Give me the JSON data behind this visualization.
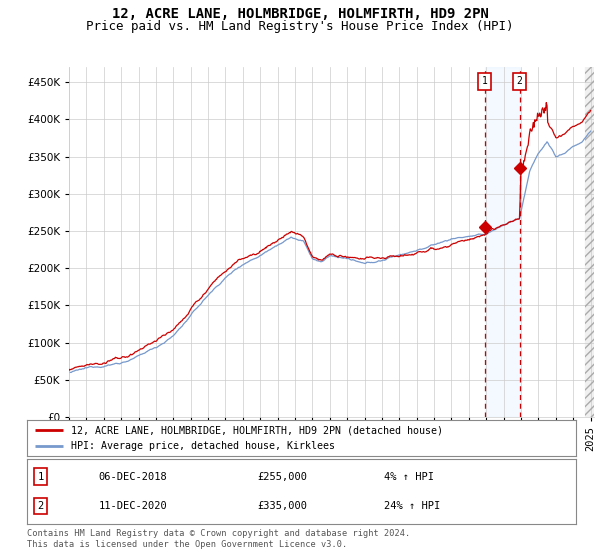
{
  "title": "12, ACRE LANE, HOLMBRIDGE, HOLMFIRTH, HD9 2PN",
  "subtitle": "Price paid vs. HM Land Registry's House Price Index (HPI)",
  "yticks": [
    0,
    50000,
    100000,
    150000,
    200000,
    250000,
    300000,
    350000,
    400000,
    450000
  ],
  "ylim": [
    0,
    470000
  ],
  "xlim_start": 1995.3,
  "xlim_end": 2025.2,
  "xticks": [
    1995,
    1996,
    1997,
    1998,
    1999,
    2000,
    2001,
    2002,
    2003,
    2004,
    2005,
    2006,
    2007,
    2008,
    2009,
    2010,
    2011,
    2012,
    2013,
    2014,
    2015,
    2016,
    2017,
    2018,
    2019,
    2020,
    2021,
    2022,
    2023,
    2024,
    2025
  ],
  "sale1_date": 2018.92,
  "sale1_price": 255000,
  "sale2_date": 2020.92,
  "sale2_price": 335000,
  "hpi_color": "#7799cc",
  "price_color": "#cc0000",
  "shade_color": "#ddeeff",
  "hatch_color": "#dddddd",
  "legend_label1": "12, ACRE LANE, HOLMBRIDGE, HOLMFIRTH, HD9 2PN (detached house)",
  "legend_label2": "HPI: Average price, detached house, Kirklees",
  "table_row1": [
    "1",
    "06-DEC-2018",
    "£255,000",
    "4% ↑ HPI"
  ],
  "table_row2": [
    "2",
    "11-DEC-2020",
    "£335,000",
    "24% ↑ HPI"
  ],
  "footer": "Contains HM Land Registry data © Crown copyright and database right 2024.\nThis data is licensed under the Open Government Licence v3.0.",
  "title_fontsize": 10,
  "subtitle_fontsize": 9,
  "tick_fontsize": 7.5,
  "background_color": "#ffffff",
  "grid_color": "#cccccc"
}
